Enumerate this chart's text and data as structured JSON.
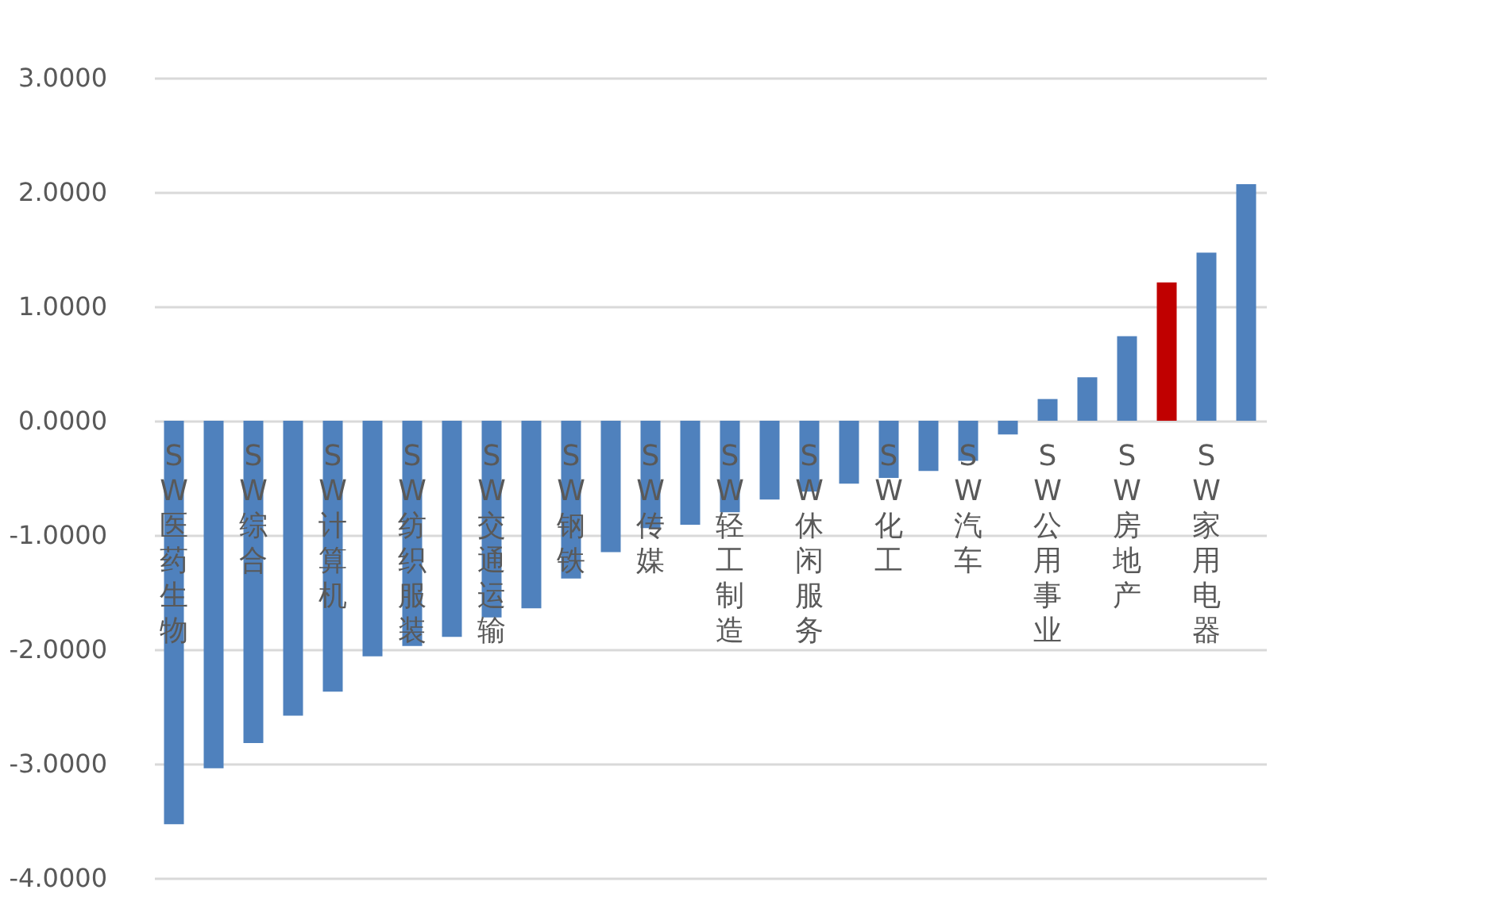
{
  "chart_data": {
    "type": "bar",
    "categories": [
      "SW医药生物",
      null,
      "SW综合",
      null,
      "SW计算机",
      null,
      "SW纺织服装",
      null,
      "SW交通运输",
      null,
      "SW钢铁",
      null,
      "SW传媒",
      null,
      "SW轻工制造",
      null,
      "SW休闲服务",
      null,
      "SW化工",
      null,
      "SW汽车",
      null,
      "SW公用事业",
      null,
      "SW房地产",
      null,
      "SW家用电器",
      null
    ],
    "values": [
      -3.53,
      -3.04,
      -2.82,
      -2.58,
      -2.37,
      -2.06,
      -1.97,
      -1.89,
      -1.72,
      -1.64,
      -1.38,
      -1.15,
      -0.94,
      -0.91,
      -0.8,
      -0.69,
      -0.62,
      -0.55,
      -0.5,
      -0.44,
      -0.35,
      -0.12,
      0.19,
      0.38,
      0.74,
      1.21,
      1.47,
      2.07
    ],
    "colors": [
      "#4f81bd",
      "#4f81bd",
      "#4f81bd",
      "#4f81bd",
      "#4f81bd",
      "#4f81bd",
      "#4f81bd",
      "#4f81bd",
      "#4f81bd",
      "#4f81bd",
      "#4f81bd",
      "#4f81bd",
      "#4f81bd",
      "#4f81bd",
      "#4f81bd",
      "#4f81bd",
      "#4f81bd",
      "#4f81bd",
      "#4f81bd",
      "#4f81bd",
      "#4f81bd",
      "#4f81bd",
      "#4f81bd",
      "#4f81bd",
      "#4f81bd",
      "#c00000",
      "#4f81bd",
      "#4f81bd"
    ],
    "ylim": [
      -4,
      3
    ],
    "yticks": [
      {
        "value": -4,
        "label": "-4.0000"
      },
      {
        "value": -3,
        "label": "-3.0000"
      },
      {
        "value": -2,
        "label": "-2.0000"
      },
      {
        "value": -1,
        "label": "-1.0000"
      },
      {
        "value": 0,
        "label": "0.0000"
      },
      {
        "value": 1,
        "label": "1.0000"
      },
      {
        "value": 2,
        "label": "2.0000"
      },
      {
        "value": 3,
        "label": "3.0000"
      }
    ],
    "grid": "y"
  }
}
